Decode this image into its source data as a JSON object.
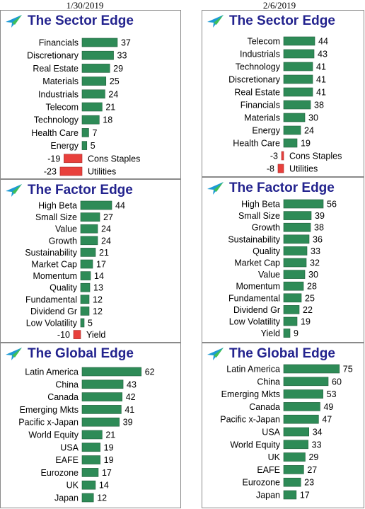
{
  "colors": {
    "positive": "#2e8b57",
    "negative": "#e8403c",
    "title": "#23238e"
  },
  "dates": {
    "left": "1/30/2019",
    "right": "2/6/2019"
  },
  "chart_data": [
    {
      "type": "bar",
      "title": "The Sector Edge",
      "date": "1/30/2019",
      "categories": [
        "Financials",
        "Discretionary",
        "Real Estate",
        "Materials",
        "Industrials",
        "Telecom",
        "Technology",
        "Health Care",
        "Energy",
        "Cons Staples",
        "Utilities"
      ],
      "values": [
        37,
        33,
        29,
        25,
        24,
        21,
        18,
        7,
        5,
        -19,
        -23
      ]
    },
    {
      "type": "bar",
      "title": "The Sector Edge",
      "date": "2/6/2019",
      "categories": [
        "Telecom",
        "Industrials",
        "Technology",
        "Discretionary",
        "Real Estate",
        "Financials",
        "Materials",
        "Energy",
        "Health Care",
        "Cons Staples",
        "Utilities"
      ],
      "values": [
        44,
        43,
        41,
        41,
        41,
        38,
        30,
        24,
        19,
        -3,
        -8
      ]
    },
    {
      "type": "bar",
      "title": "The Factor Edge",
      "date": "1/30/2019",
      "categories": [
        "High Beta",
        "Small Size",
        "Value",
        "Growth",
        "Sustainability",
        "Market Cap",
        "Momentum",
        "Quality",
        "Fundamental",
        "Dividend Gr",
        "Low Volatility",
        "Yield"
      ],
      "values": [
        44,
        27,
        24,
        24,
        21,
        17,
        14,
        13,
        12,
        12,
        5,
        -10
      ]
    },
    {
      "type": "bar",
      "title": "The Factor Edge",
      "date": "2/6/2019",
      "categories": [
        "High Beta",
        "Small Size",
        "Growth",
        "Sustainability",
        "Quality",
        "Market Cap",
        "Value",
        "Momentum",
        "Fundamental",
        "Dividend Gr",
        "Low Volatility",
        "Yield"
      ],
      "values": [
        56,
        39,
        38,
        36,
        33,
        32,
        30,
        28,
        25,
        22,
        19,
        9
      ]
    },
    {
      "type": "bar",
      "title": "The Global Edge",
      "date": "1/30/2019",
      "categories": [
        "Latin America",
        "China",
        "Canada",
        "Emerging Mkts",
        "Pacific x-Japan",
        "World Equity",
        "USA",
        "EAFE",
        "Eurozone",
        "UK",
        "Japan"
      ],
      "values": [
        62,
        43,
        42,
        41,
        39,
        21,
        19,
        19,
        17,
        14,
        12
      ]
    },
    {
      "type": "bar",
      "title": "The Global Edge",
      "date": "2/6/2019",
      "categories": [
        "Latin America",
        "China",
        "Emerging Mkts",
        "Canada",
        "Pacific x-Japan",
        "USA",
        "World Equity",
        "UK",
        "EAFE",
        "Eurozone",
        "Japan"
      ],
      "values": [
        75,
        60,
        53,
        49,
        47,
        34,
        33,
        29,
        27,
        23,
        17
      ]
    }
  ]
}
